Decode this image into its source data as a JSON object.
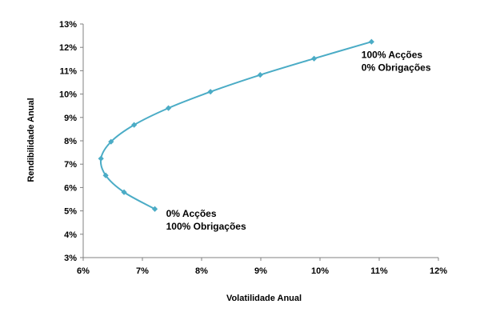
{
  "chart_data": {
    "type": "scatter",
    "title": "",
    "xlabel": "Volatilidade Anual",
    "ylabel": "Rendibilidade Anual",
    "xlim": [
      6,
      12
    ],
    "ylim": [
      3,
      13
    ],
    "x_ticks": [
      6,
      7,
      8,
      9,
      10,
      11,
      12
    ],
    "y_ticks": [
      3,
      4,
      5,
      6,
      7,
      8,
      9,
      10,
      11,
      12,
      13
    ],
    "x_tick_labels": [
      "6%",
      "7%",
      "8%",
      "9%",
      "10%",
      "11%",
      "12%"
    ],
    "y_tick_labels": [
      "3%",
      "4%",
      "5%",
      "6%",
      "7%",
      "8%",
      "9%",
      "10%",
      "11%",
      "12%",
      "13%"
    ],
    "grid": false,
    "series": [
      {
        "color": "#4bacc6",
        "x": [
          7.21,
          6.69,
          6.38,
          6.3,
          6.47,
          6.86,
          7.44,
          8.15,
          8.99,
          9.9,
          10.87
        ],
        "y": [
          5.08,
          5.8,
          6.52,
          7.24,
          7.96,
          8.68,
          9.4,
          10.1,
          10.82,
          11.52,
          12.24
        ]
      }
    ],
    "annotations": [
      {
        "lines": [
          "100% Acções",
          "0% Obrigações"
        ],
        "anchor_x": 10.7,
        "anchor_y": 11.55
      },
      {
        "lines": [
          "0% Acções",
          "100% Obrigações"
        ],
        "anchor_x": 7.4,
        "anchor_y": 4.75
      }
    ]
  }
}
